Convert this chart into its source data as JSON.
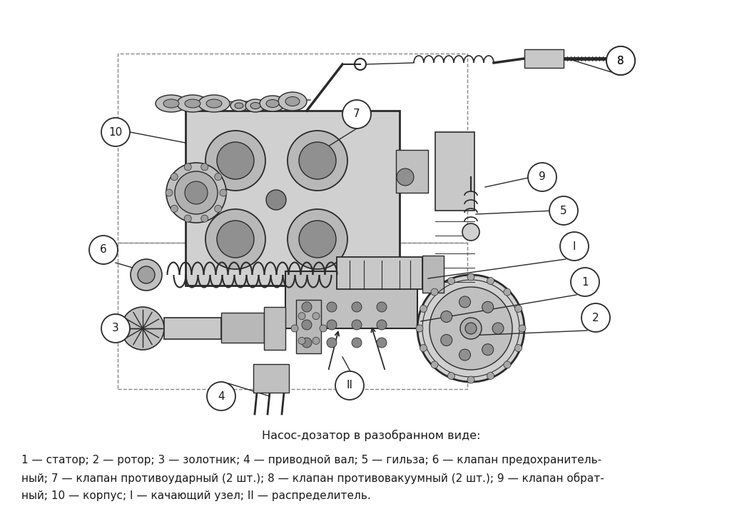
{
  "title": "Насос-дозатор в разобранном виде:",
  "caption_line1": "1 — статор; 2 — ротор; 3 — золотник; 4 — приводной вал; 5 — гильза; 6 — клапан предохранитель-",
  "caption_line2": "ный; 7 — клапан противоударный (2 шт.); 8 — клапан противовакуумный (2 шт.); 9 — клапан обрат-",
  "caption_line3": "ный; 10 — корпус; I — качающий узел; II — распределитель.",
  "bg_color": "#ffffff",
  "fig_width": 10.4,
  "fig_height": 7.2,
  "dpi": 100,
  "title_fontsize": 11.5,
  "caption_fontsize": 11.0,
  "text_color": "#1a1a1a",
  "line_color": "#2a2a2a",
  "circle_facecolor": "#ffffff",
  "circle_edgecolor": "#2a2a2a",
  "part_fill": "#d4d4d4",
  "part_edge": "#1a1a1a"
}
